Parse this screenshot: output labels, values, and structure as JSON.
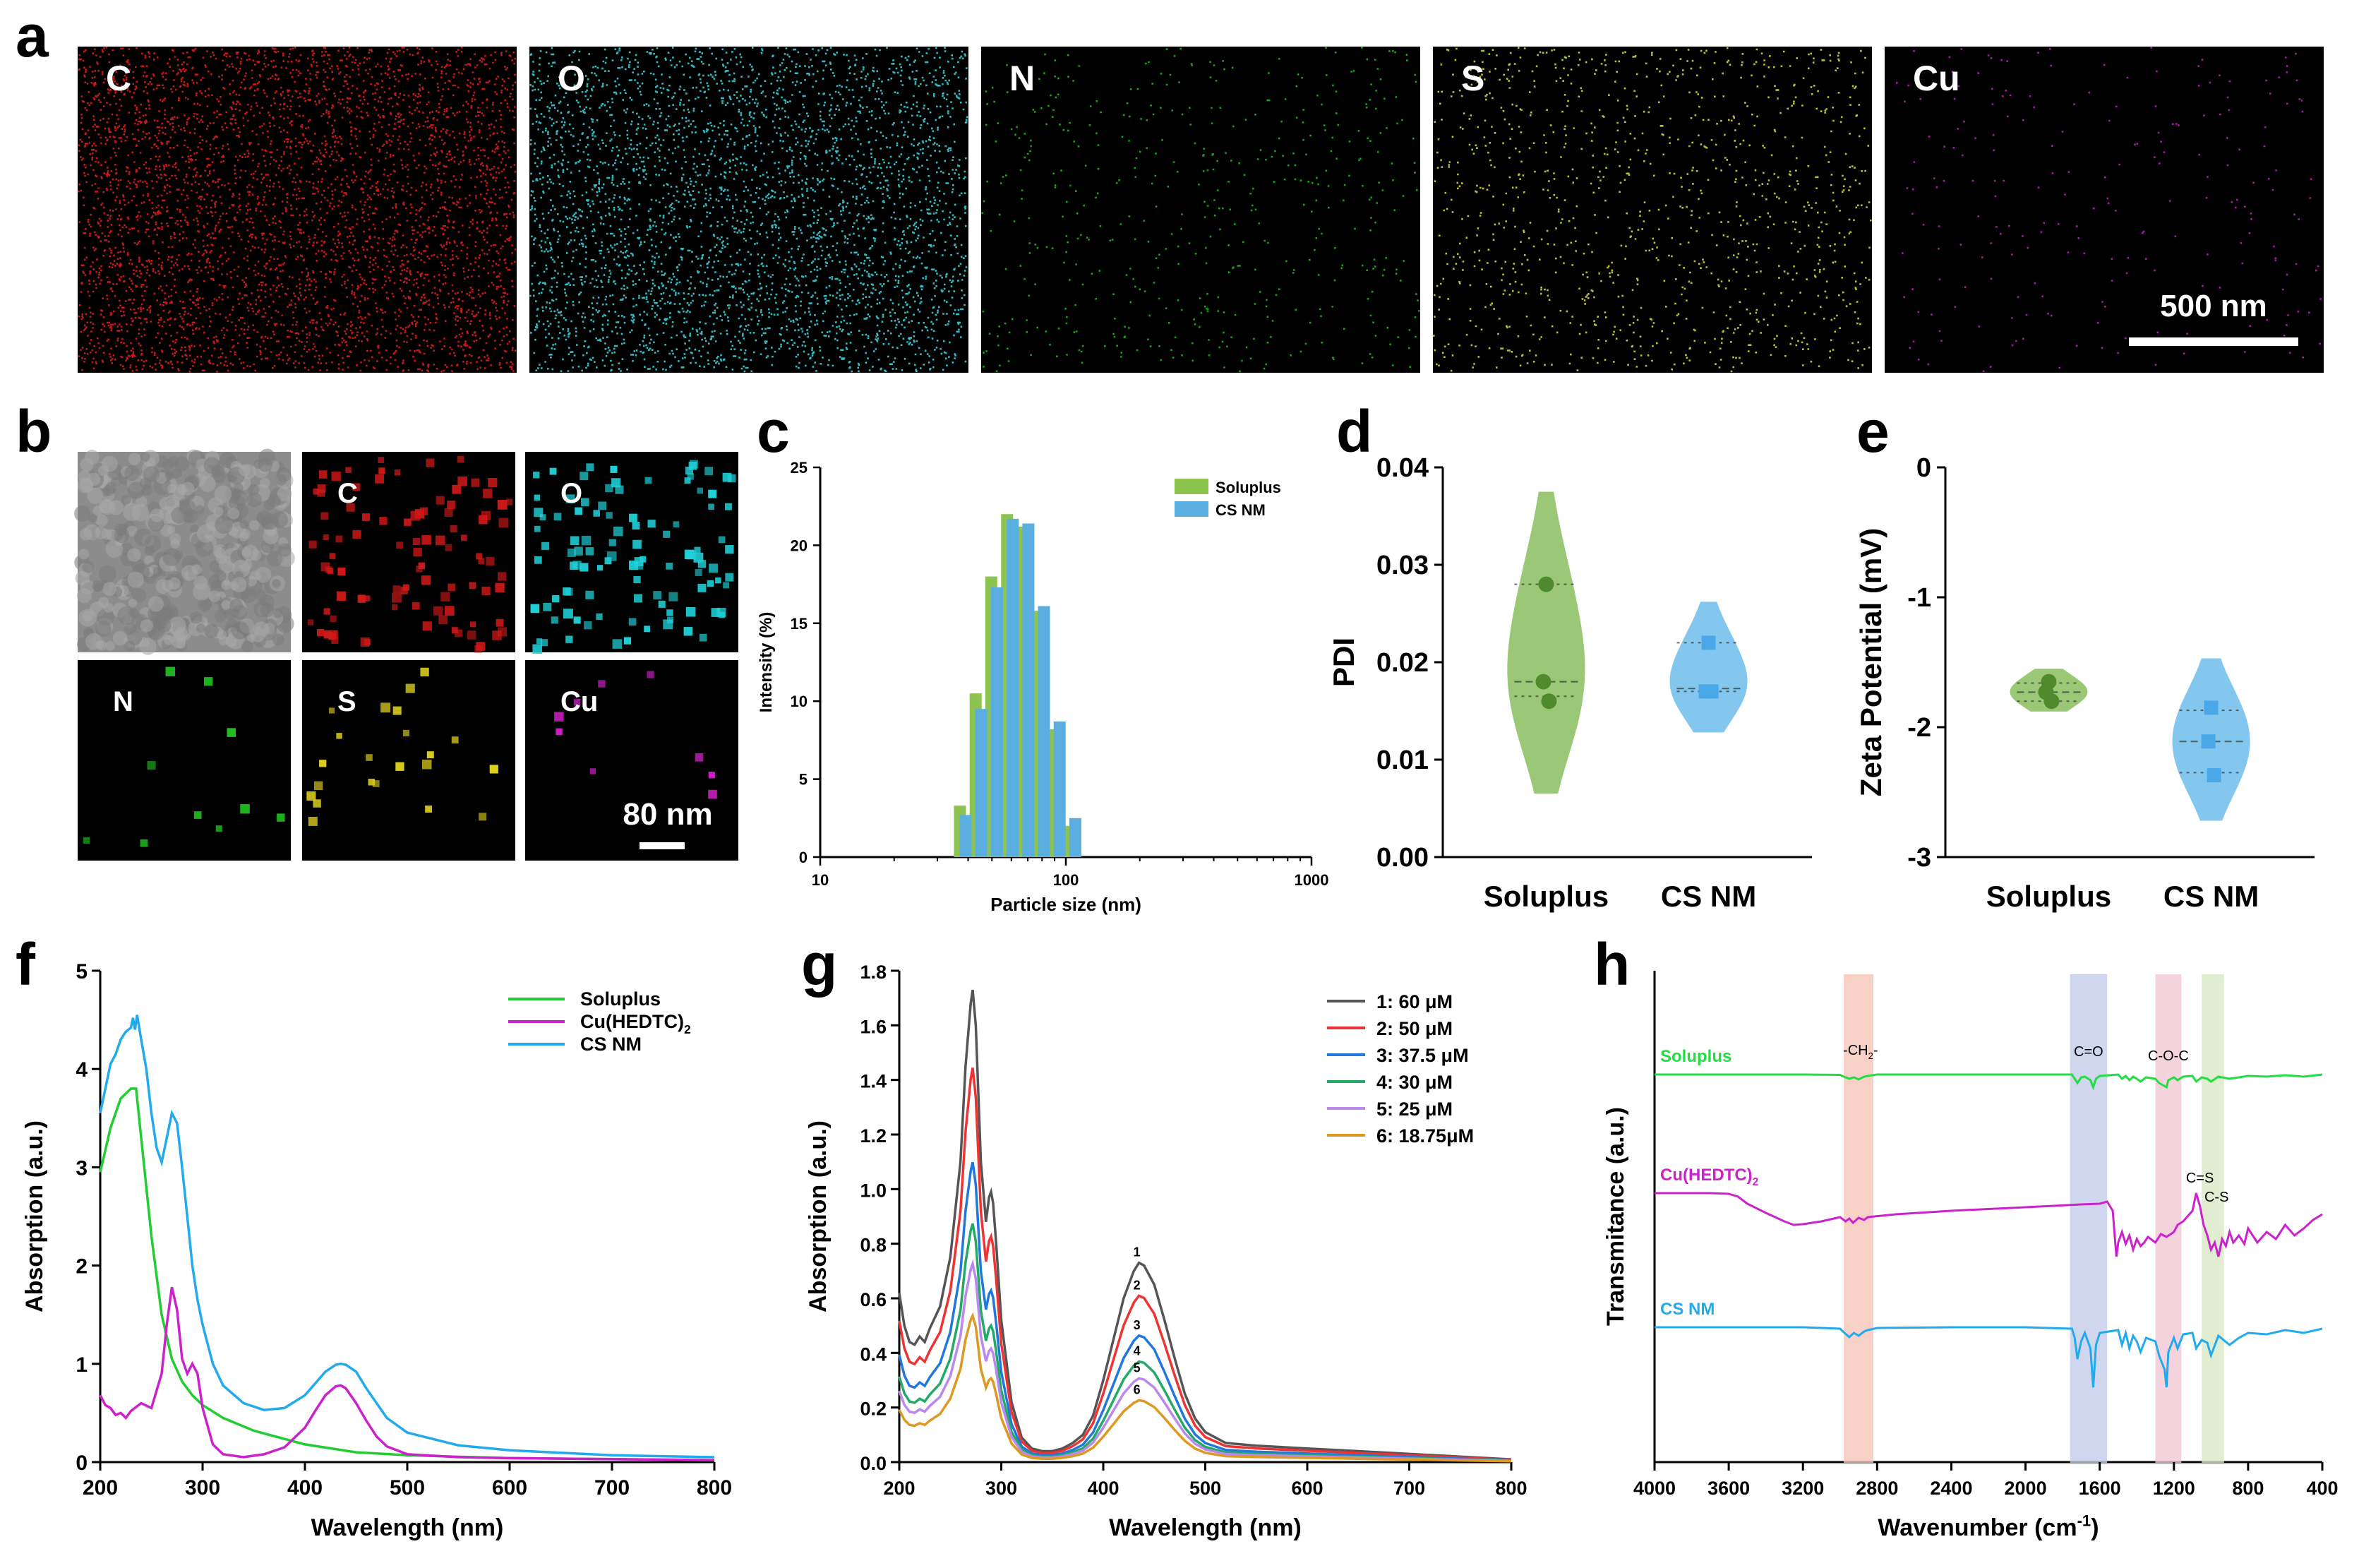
{
  "figure": {
    "panel_labels": [
      "a",
      "b",
      "c",
      "d",
      "e",
      "f",
      "g",
      "h"
    ]
  },
  "panel_a": {
    "maps": [
      {
        "element": "C",
        "color": "#e02020",
        "density": 4200
      },
      {
        "element": "O",
        "color": "#40d8e0",
        "density": 3600
      },
      {
        "element": "N",
        "color": "#22b822",
        "density": 500
      },
      {
        "element": "S",
        "color": "#d8e040",
        "density": 1100
      },
      {
        "element": "Cu",
        "color": "#c020c0",
        "density": 220
      }
    ],
    "scalebar_label": "500 nm"
  },
  "panel_b": {
    "maps": [
      {
        "element": "",
        "color": "#9a9a9a"
      },
      {
        "element": "C",
        "color": "#d01818"
      },
      {
        "element": "O",
        "color": "#20d0d8"
      },
      {
        "element": "N",
        "color": "#20c020"
      },
      {
        "element": "S",
        "color": "#e0d020"
      },
      {
        "element": "Cu",
        "color": "#d020c8"
      }
    ],
    "scalebar_label": "80 nm"
  },
  "chart_data": [
    {
      "panel": "c",
      "type": "bar",
      "xlabel": "Particle size (nm)",
      "ylabel": "Intensity (%)",
      "xscale": "log",
      "xlim": [
        10,
        1000
      ],
      "ylim": [
        0,
        25
      ],
      "x_ticks": [
        10,
        100,
        1000
      ],
      "y_ticks": [
        0,
        5,
        10,
        15,
        20,
        25
      ],
      "legend": "top-right",
      "bin_centers": [
        37.8,
        43.8,
        50.7,
        58.8,
        68.1,
        78.8,
        91.3,
        105.7
      ],
      "series": [
        {
          "name": "Soluplus",
          "color": "#8dc34f",
          "values": [
            3.3,
            10.5,
            18.0,
            22.0,
            21.2,
            15.8,
            8.2,
            2.0
          ]
        },
        {
          "name": "CS NM",
          "color": "#5aaee0",
          "values": [
            2.7,
            9.5,
            17.3,
            21.7,
            21.4,
            16.1,
            8.7,
            2.5
          ]
        }
      ]
    },
    {
      "panel": "d",
      "type": "scatter",
      "ylabel": "PDI",
      "categories": [
        "Soluplus",
        "CS NM"
      ],
      "ylim": [
        0,
        0.04
      ],
      "y_ticks": [
        "0.00",
        "0.01",
        "0.02",
        "0.03",
        "0.04"
      ],
      "series": [
        {
          "name": "Soluplus",
          "color": "#7ab648",
          "points": [
            0.028,
            0.018,
            0.016
          ],
          "median": 0.018,
          "q1": 0.0165,
          "q3": 0.028,
          "violin_range": [
            0.0065,
            0.0375
          ]
        },
        {
          "name": "CS NM",
          "color": "#5ab4e8",
          "points": [
            0.022,
            0.017,
            0.017
          ],
          "median": 0.0173,
          "q1": 0.017,
          "q3": 0.022,
          "violin_range": [
            0.0128,
            0.0262
          ]
        }
      ]
    },
    {
      "panel": "e",
      "type": "scatter",
      "ylabel": "Zeta Potential (mV)",
      "categories": [
        "Soluplus",
        "CS NM"
      ],
      "ylim": [
        -3,
        0
      ],
      "y_ticks": [
        "0",
        "-1",
        "-2",
        "-3"
      ],
      "series": [
        {
          "name": "Soluplus",
          "color": "#7ab648",
          "points": [
            -1.65,
            -1.73,
            -1.8
          ],
          "median": -1.73,
          "q1": -1.8,
          "q3": -1.66,
          "violin_range": [
            -1.88,
            -1.55
          ]
        },
        {
          "name": "CS NM",
          "color": "#5ab4e8",
          "points": [
            -1.85,
            -2.11,
            -2.37
          ],
          "median": -2.11,
          "q1": -2.35,
          "q3": -1.87,
          "violin_range": [
            -2.72,
            -1.47
          ]
        }
      ]
    },
    {
      "panel": "f",
      "type": "line",
      "xlabel": "Wavelength (nm)",
      "ylabel": "Absorption (a.u.)",
      "xlim": [
        200,
        800
      ],
      "ylim": [
        0,
        5
      ],
      "x_ticks": [
        200,
        300,
        400,
        500,
        600,
        700,
        800
      ],
      "y_ticks": [
        0,
        1,
        2,
        3,
        4,
        5
      ],
      "legend": "top-right",
      "series": [
        {
          "name": "Soluplus",
          "color": "#22cc33",
          "x": [
            200,
            210,
            220,
            230,
            235,
            240,
            250,
            260,
            270,
            280,
            290,
            300,
            320,
            350,
            400,
            450,
            500,
            600,
            700,
            800
          ],
          "y": [
            2.95,
            3.4,
            3.7,
            3.8,
            3.8,
            3.3,
            2.3,
            1.5,
            1.05,
            0.82,
            0.68,
            0.58,
            0.45,
            0.32,
            0.18,
            0.1,
            0.07,
            0.04,
            0.03,
            0.02
          ]
        },
        {
          "name": "Cu(HEDTC)",
          "name_sub": "2",
          "color": "#cc22cc",
          "x": [
            200,
            205,
            210,
            215,
            220,
            225,
            230,
            240,
            250,
            260,
            265,
            270,
            275,
            280,
            285,
            290,
            295,
            300,
            310,
            320,
            340,
            360,
            380,
            400,
            410,
            420,
            430,
            435,
            440,
            450,
            460,
            470,
            480,
            500,
            550,
            600,
            700,
            800
          ],
          "y": [
            0.68,
            0.58,
            0.55,
            0.48,
            0.5,
            0.45,
            0.52,
            0.6,
            0.55,
            0.9,
            1.4,
            1.78,
            1.55,
            1.05,
            0.9,
            1.0,
            0.9,
            0.55,
            0.18,
            0.08,
            0.05,
            0.08,
            0.15,
            0.35,
            0.52,
            0.68,
            0.77,
            0.78,
            0.75,
            0.6,
            0.42,
            0.26,
            0.16,
            0.08,
            0.05,
            0.04,
            0.03,
            0.02
          ]
        },
        {
          "name": "CS NM",
          "color": "#22aaee",
          "x": [
            200,
            210,
            215,
            220,
            225,
            230,
            232,
            234,
            236,
            240,
            245,
            250,
            255,
            260,
            265,
            270,
            275,
            280,
            285,
            290,
            295,
            300,
            310,
            320,
            340,
            360,
            380,
            400,
            410,
            420,
            430,
            435,
            440,
            450,
            460,
            480,
            500,
            550,
            600,
            700,
            800
          ],
          "y": [
            3.55,
            4.05,
            4.15,
            4.3,
            4.38,
            4.42,
            4.52,
            4.4,
            4.55,
            4.3,
            4.0,
            3.55,
            3.2,
            3.05,
            3.3,
            3.55,
            3.45,
            3.0,
            2.5,
            2.0,
            1.65,
            1.4,
            1.0,
            0.78,
            0.6,
            0.53,
            0.55,
            0.68,
            0.8,
            0.92,
            0.99,
            1.0,
            0.99,
            0.92,
            0.75,
            0.45,
            0.3,
            0.17,
            0.12,
            0.07,
            0.05
          ]
        }
      ]
    },
    {
      "panel": "g",
      "type": "line",
      "xlabel": "Wavelength (nm)",
      "ylabel": "Absorption (a.u.)",
      "xlim": [
        200,
        800
      ],
      "ylim": [
        0,
        1.8
      ],
      "x_ticks": [
        200,
        300,
        400,
        500,
        600,
        700,
        800
      ],
      "y_ticks": [
        "0.0",
        "0.2",
        "0.4",
        "0.6",
        "0.8",
        "1.0",
        "1.2",
        "1.4",
        "1.6",
        "1.8"
      ],
      "legend": "top-right",
      "series": [
        {
          "name": "1: 60 μM",
          "label": "1",
          "color": "#555555",
          "scale": 1.0
        },
        {
          "name": "2: 50 μM",
          "label": "2",
          "color": "#ee3333",
          "scale": 0.835
        },
        {
          "name": "3: 37.5 μM",
          "label": "3",
          "color": "#2277dd",
          "scale": 0.635
        },
        {
          "name": "4: 30 μM",
          "label": "4",
          "color": "#22aa66",
          "scale": 0.505
        },
        {
          "name": "5: 25 μM",
          "label": "5",
          "color": "#bb88ee",
          "scale": 0.42
        },
        {
          "name": "6: 18.75μM",
          "label": "6",
          "color": "#dd9922",
          "scale": 0.31
        }
      ],
      "base_shape": {
        "x": [
          200,
          205,
          210,
          215,
          220,
          225,
          230,
          240,
          250,
          260,
          265,
          270,
          272,
          275,
          280,
          285,
          288,
          290,
          292,
          295,
          300,
          310,
          320,
          330,
          340,
          350,
          360,
          370,
          380,
          390,
          400,
          410,
          420,
          430,
          435,
          440,
          450,
          460,
          470,
          480,
          490,
          500,
          520,
          550,
          600,
          650,
          700,
          750,
          800
        ],
        "y": [
          0.62,
          0.5,
          0.44,
          0.43,
          0.46,
          0.44,
          0.49,
          0.57,
          0.75,
          1.1,
          1.45,
          1.68,
          1.73,
          1.6,
          1.1,
          0.88,
          0.97,
          0.99,
          0.95,
          0.8,
          0.52,
          0.22,
          0.09,
          0.05,
          0.04,
          0.04,
          0.05,
          0.07,
          0.1,
          0.17,
          0.3,
          0.45,
          0.6,
          0.7,
          0.73,
          0.72,
          0.65,
          0.52,
          0.38,
          0.25,
          0.16,
          0.11,
          0.07,
          0.06,
          0.05,
          0.04,
          0.03,
          0.02,
          0.01
        ]
      }
    },
    {
      "panel": "h",
      "type": "line",
      "xlabel": "Wavenumber (cm",
      "xlabel_sup": "-1",
      "xlabel_end": ")",
      "ylabel": "Transmitance (a.u.)",
      "xlim": [
        4000,
        400
      ],
      "x_ticks": [
        4000,
        3600,
        3200,
        2800,
        2400,
        2000,
        1600,
        1200,
        800,
        400
      ],
      "bands": [
        {
          "label": "-CH",
          "sub": "2",
          "tail": "-",
          "from": 2980,
          "to": 2820,
          "color": "#f6c6b8"
        },
        {
          "label": "C=O",
          "from": 1760,
          "to": 1560,
          "color": "#c4cce8"
        },
        {
          "label": "C-O-C",
          "from": 1300,
          "to": 1160,
          "color": "#f2c8d4"
        },
        {
          "label": "C=S",
          "label2": "C-S",
          "from": 1050,
          "to": 930,
          "color": "#d8e8c4"
        }
      ],
      "series": [
        {
          "name": "Soluplus",
          "color": "#22dd44",
          "x": [
            4000,
            3600,
            3200,
            3000,
            2980,
            2950,
            2925,
            2900,
            2870,
            2850,
            2800,
            2400,
            2000,
            1750,
            1735,
            1720,
            1700,
            1680,
            1650,
            1635,
            1620,
            1600,
            1500,
            1480,
            1460,
            1440,
            1420,
            1400,
            1380,
            1350,
            1300,
            1280,
            1240,
            1230,
            1200,
            1180,
            1150,
            1100,
            1080,
            1050,
            1020,
            1000,
            960,
            900,
            850,
            800,
            700,
            600,
            500,
            400
          ],
          "y": [
            0,
            0,
            0,
            -0.5,
            -3,
            -6,
            -4,
            -7,
            -3,
            -2,
            0,
            0,
            0,
            0,
            -6,
            -12,
            -4,
            -3,
            -8,
            -18,
            -6,
            -2,
            0,
            -6,
            -2,
            -8,
            -3,
            -6,
            -10,
            -4,
            -6,
            -12,
            -18,
            -8,
            -4,
            -8,
            -3,
            -2,
            -10,
            -4,
            -6,
            -10,
            -3,
            -6,
            -4,
            -2,
            -3,
            -1,
            -3,
            0
          ]
        },
        {
          "name": "Cu(HEDTC)",
          "name_sub": "2",
          "color": "#cc22cc",
          "x": [
            4000,
            3700,
            3600,
            3550,
            3500,
            3400,
            3300,
            3250,
            3200,
            3100,
            3000,
            2970,
            2950,
            2930,
            2900,
            2870,
            2850,
            2700,
            2400,
            2000,
            1700,
            1600,
            1560,
            1530,
            1510,
            1500,
            1480,
            1460,
            1440,
            1420,
            1400,
            1380,
            1360,
            1340,
            1300,
            1270,
            1240,
            1200,
            1180,
            1150,
            1100,
            1080,
            1060,
            1040,
            1020,
            1000,
            980,
            960,
            940,
            920,
            900,
            880,
            850,
            820,
            800,
            750,
            700,
            650,
            600,
            550,
            500,
            450,
            400
          ],
          "y": [
            0,
            0,
            -1,
            -5,
            -15,
            -28,
            -40,
            -45,
            -44,
            -40,
            -34,
            -40,
            -36,
            -42,
            -35,
            -38,
            -34,
            -30,
            -25,
            -20,
            -16,
            -15,
            -12,
            -25,
            -90,
            -70,
            -55,
            -72,
            -60,
            -80,
            -65,
            -75,
            -70,
            -62,
            -70,
            -58,
            -62,
            -55,
            -45,
            -40,
            -25,
            0,
            -18,
            -45,
            -60,
            -80,
            -70,
            -90,
            -65,
            -75,
            -55,
            -70,
            -60,
            -72,
            -50,
            -70,
            -55,
            -65,
            -45,
            -60,
            -50,
            -38,
            -30
          ]
        },
        {
          "name": "CS NM",
          "color": "#22aaee",
          "x": [
            4000,
            3600,
            3200,
            3000,
            2980,
            2950,
            2925,
            2900,
            2870,
            2850,
            2800,
            2400,
            2000,
            1750,
            1735,
            1720,
            1700,
            1680,
            1650,
            1635,
            1620,
            1600,
            1500,
            1480,
            1460,
            1440,
            1420,
            1400,
            1380,
            1350,
            1300,
            1280,
            1250,
            1240,
            1230,
            1200,
            1180,
            1150,
            1100,
            1080,
            1050,
            1020,
            1000,
            960,
            900,
            850,
            800,
            700,
            600,
            500,
            400
          ],
          "y": [
            0,
            0,
            0,
            -2,
            -7,
            -14,
            -8,
            -12,
            -6,
            -4,
            -1,
            0,
            0,
            -2,
            -15,
            -45,
            -20,
            -8,
            -30,
            -85,
            -25,
            -8,
            -4,
            -25,
            -8,
            -30,
            -12,
            -20,
            -35,
            -15,
            -20,
            -40,
            -60,
            -85,
            -35,
            -15,
            -30,
            -10,
            -8,
            -30,
            -18,
            -22,
            -40,
            -12,
            -25,
            -15,
            -8,
            -10,
            -4,
            -8,
            -2
          ]
        }
      ]
    }
  ]
}
